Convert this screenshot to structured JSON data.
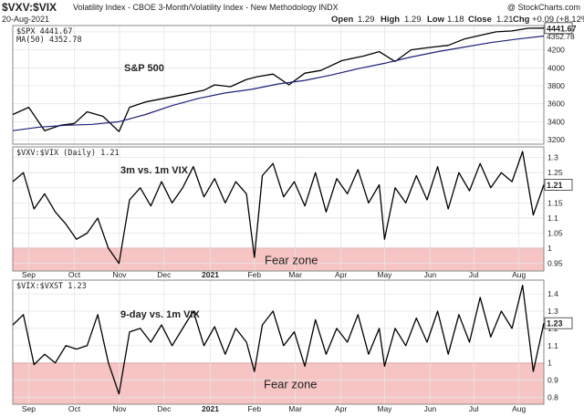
{
  "header": {
    "symbol": "$VXV:$VIX",
    "description": "Volatility Index - CBOE 3-Month/Volatility Index - New Methodology  INDX",
    "brand": "@ StockCharts.com",
    "date": "20-Aug-2021",
    "ohlc": {
      "open_label": "Open",
      "open": "1.29",
      "high_label": "High",
      "high": "1.29",
      "low_label": "Low",
      "low": "1.18",
      "close_label": "Close",
      "close": "1.21",
      "chg_label": "Chg",
      "chg": "+0.09 (+8.12%)"
    }
  },
  "colors": {
    "price": "#000000",
    "ma": "#1f1f7a",
    "fear_fill": "#f7c4c4",
    "fear_border": "#c83a3a",
    "grid": "#e4e4e4",
    "badge": "#ffffff"
  },
  "x_axis": {
    "months": [
      {
        "label": "Sep",
        "pos": 0.03
      },
      {
        "label": "Oct",
        "pos": 0.116
      },
      {
        "label": "Nov",
        "pos": 0.201
      },
      {
        "label": "Dec",
        "pos": 0.285
      },
      {
        "label": "2021",
        "pos": 0.372,
        "bold": true
      },
      {
        "label": "Feb",
        "pos": 0.455
      },
      {
        "label": "Mar",
        "pos": 0.532
      },
      {
        "label": "Apr",
        "pos": 0.618
      },
      {
        "label": "May",
        "pos": 0.7
      },
      {
        "label": "Jun",
        "pos": 0.786
      },
      {
        "label": "Jul",
        "pos": 0.868
      },
      {
        "label": "Aug",
        "pos": 0.953
      }
    ]
  },
  "chart_data": [
    {
      "type": "line",
      "panel": "spx",
      "legend_price": "$SPX 4441.67",
      "legend_ma": "MA(50) 4352.78",
      "annotation": "S&P 500",
      "last_value": "4441.67",
      "ma_last_value": "4352.78",
      "yticks": [
        3200,
        3400,
        3600,
        3800,
        4000,
        4200,
        4400
      ],
      "ylim": [
        3150,
        4470
      ],
      "series": [
        {
          "name": "$SPX",
          "x": [
            0,
            0.03,
            0.06,
            0.09,
            0.116,
            0.14,
            0.17,
            0.2,
            0.22,
            0.25,
            0.285,
            0.32,
            0.36,
            0.38,
            0.41,
            0.44,
            0.46,
            0.49,
            0.52,
            0.55,
            0.58,
            0.62,
            0.66,
            0.69,
            0.72,
            0.75,
            0.79,
            0.82,
            0.85,
            0.88,
            0.91,
            0.94,
            0.97,
            1.0
          ],
          "values": [
            3480,
            3560,
            3300,
            3360,
            3380,
            3510,
            3460,
            3290,
            3560,
            3620,
            3660,
            3700,
            3750,
            3810,
            3790,
            3870,
            3900,
            3930,
            3810,
            3940,
            3970,
            4080,
            4130,
            4180,
            4070,
            4200,
            4230,
            4250,
            4320,
            4360,
            4400,
            4410,
            4440,
            4442
          ]
        },
        {
          "name": "MA(50)",
          "x": [
            0,
            0.05,
            0.1,
            0.15,
            0.2,
            0.25,
            0.3,
            0.35,
            0.4,
            0.45,
            0.5,
            0.55,
            0.6,
            0.65,
            0.7,
            0.75,
            0.8,
            0.85,
            0.9,
            0.95,
            1.0
          ],
          "values": [
            3300,
            3340,
            3360,
            3370,
            3400,
            3480,
            3580,
            3660,
            3720,
            3760,
            3820,
            3860,
            3920,
            3990,
            4050,
            4120,
            4180,
            4230,
            4280,
            4320,
            4353
          ]
        }
      ]
    },
    {
      "type": "line",
      "panel": "vxv_vix",
      "legend": "$VXV:$VIX (Daily) 1.21",
      "annotation": "3m vs. 1m VIX",
      "fear_zone_label": "Fear zone",
      "last_value": "1.21",
      "yticks": [
        0.95,
        1.0,
        1.05,
        1.1,
        1.15,
        1.2,
        1.25,
        1.3
      ],
      "ylim": [
        0.925,
        1.335
      ],
      "fear_zone": [
        0.925,
        1.0
      ],
      "series": [
        {
          "name": "$VXV:$VIX",
          "x": [
            0,
            0.02,
            0.04,
            0.06,
            0.08,
            0.1,
            0.12,
            0.14,
            0.16,
            0.18,
            0.2,
            0.22,
            0.24,
            0.26,
            0.28,
            0.3,
            0.32,
            0.34,
            0.36,
            0.38,
            0.4,
            0.42,
            0.44,
            0.455,
            0.47,
            0.49,
            0.51,
            0.53,
            0.55,
            0.57,
            0.59,
            0.61,
            0.63,
            0.65,
            0.67,
            0.69,
            0.7,
            0.72,
            0.74,
            0.76,
            0.78,
            0.8,
            0.82,
            0.84,
            0.86,
            0.88,
            0.9,
            0.92,
            0.94,
            0.96,
            0.98,
            1.0
          ],
          "values": [
            1.22,
            1.25,
            1.13,
            1.18,
            1.12,
            1.08,
            1.03,
            1.05,
            1.1,
            1.0,
            0.95,
            1.16,
            1.2,
            1.14,
            1.22,
            1.15,
            1.2,
            1.27,
            1.17,
            1.23,
            1.15,
            1.22,
            1.18,
            0.97,
            1.24,
            1.28,
            1.17,
            1.22,
            1.14,
            1.25,
            1.12,
            1.23,
            1.18,
            1.26,
            1.15,
            1.21,
            1.03,
            1.2,
            1.15,
            1.24,
            1.16,
            1.27,
            1.13,
            1.25,
            1.19,
            1.28,
            1.2,
            1.25,
            1.22,
            1.32,
            1.11,
            1.21
          ]
        }
      ]
    },
    {
      "type": "line",
      "panel": "vix_vxst",
      "legend": "$VIX:$VXST 1.23",
      "annotation": "9-day vs. 1m VIX",
      "fear_zone_label": "Fear zone",
      "last_value": "1.23",
      "yticks": [
        0.8,
        0.9,
        1.0,
        1.1,
        1.2,
        1.3,
        1.4
      ],
      "ylim": [
        0.76,
        1.48
      ],
      "fear_zone": [
        0.76,
        1.0
      ],
      "series": [
        {
          "name": "$VIX:$VXST",
          "x": [
            0,
            0.02,
            0.04,
            0.06,
            0.08,
            0.1,
            0.12,
            0.14,
            0.16,
            0.18,
            0.2,
            0.22,
            0.24,
            0.26,
            0.28,
            0.3,
            0.32,
            0.34,
            0.36,
            0.38,
            0.4,
            0.42,
            0.44,
            0.455,
            0.47,
            0.49,
            0.51,
            0.53,
            0.55,
            0.57,
            0.59,
            0.61,
            0.63,
            0.65,
            0.67,
            0.69,
            0.7,
            0.72,
            0.74,
            0.76,
            0.78,
            0.8,
            0.82,
            0.84,
            0.86,
            0.88,
            0.9,
            0.92,
            0.94,
            0.96,
            0.98,
            1.0
          ],
          "values": [
            1.22,
            1.28,
            0.99,
            1.05,
            1.0,
            1.1,
            1.08,
            1.1,
            1.28,
            1.0,
            0.82,
            1.18,
            1.2,
            1.12,
            1.22,
            1.1,
            1.2,
            1.3,
            1.1,
            1.21,
            1.05,
            1.2,
            1.12,
            0.95,
            1.22,
            1.3,
            1.1,
            1.18,
            0.98,
            1.25,
            1.05,
            1.2,
            1.12,
            1.28,
            1.05,
            1.2,
            0.98,
            1.2,
            1.1,
            1.26,
            1.12,
            1.3,
            1.05,
            1.28,
            1.12,
            1.38,
            1.15,
            1.3,
            1.2,
            1.45,
            0.95,
            1.23
          ]
        }
      ]
    }
  ]
}
